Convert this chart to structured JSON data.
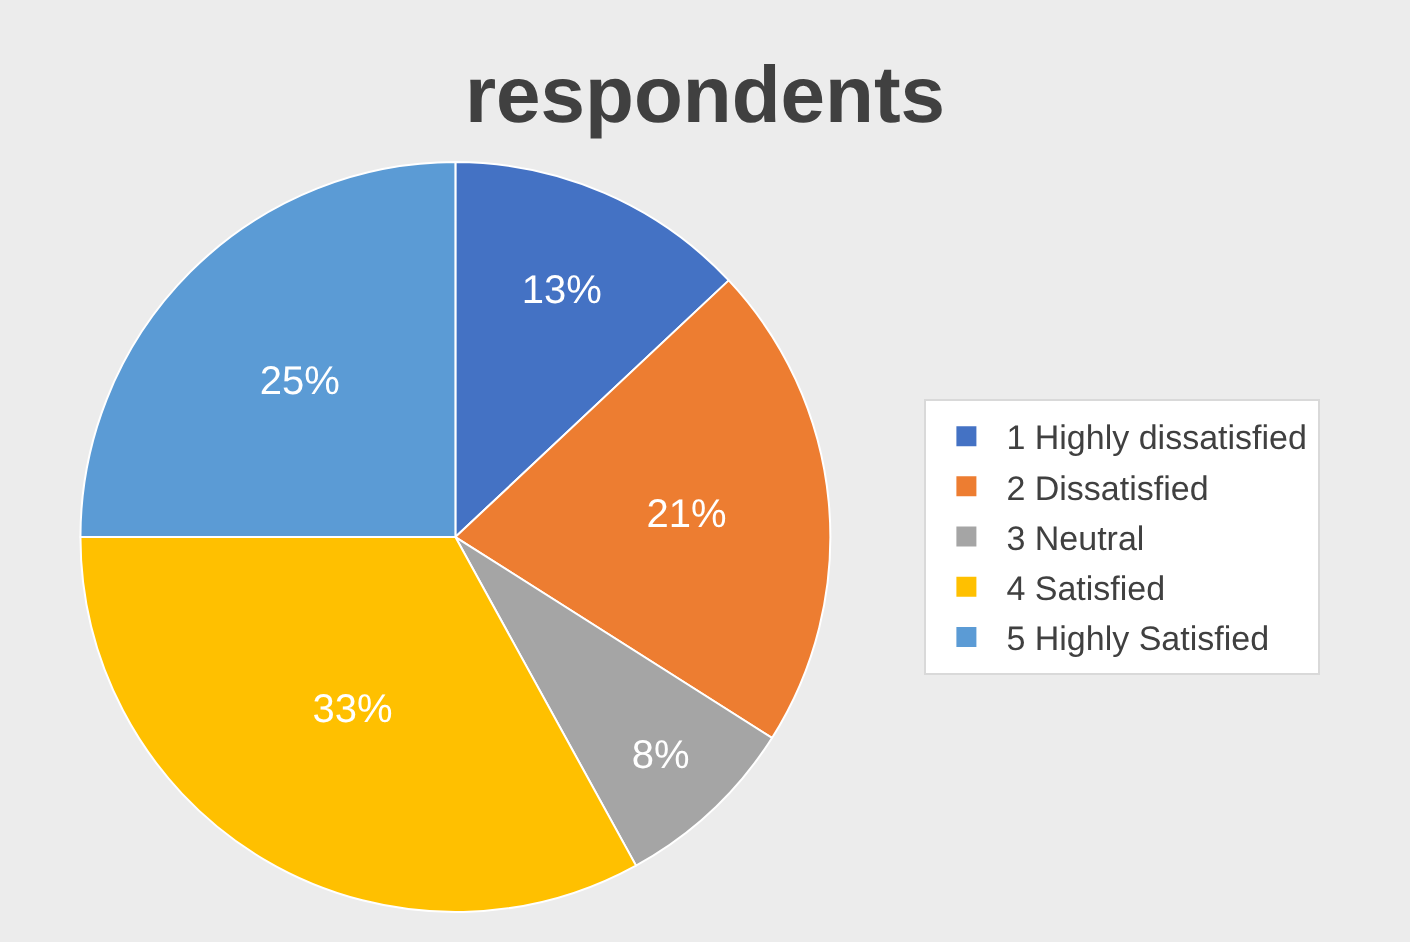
{
  "chart_data": {
    "type": "pie",
    "title": "respondents",
    "categories": [
      "1 Highly dissatisfied",
      "2 Dissatisfied",
      "3 Neutral",
      "4 Satisfied",
      "5 Highly Satisfied"
    ],
    "values": [
      13,
      21,
      8,
      33,
      25
    ],
    "value_labels": [
      "13%",
      "21%",
      "8%",
      "33%",
      "25%"
    ],
    "colors": [
      "#4472c4",
      "#ed7d31",
      "#a5a5a5",
      "#ffc000",
      "#5b9bd5"
    ],
    "legend": "right"
  }
}
